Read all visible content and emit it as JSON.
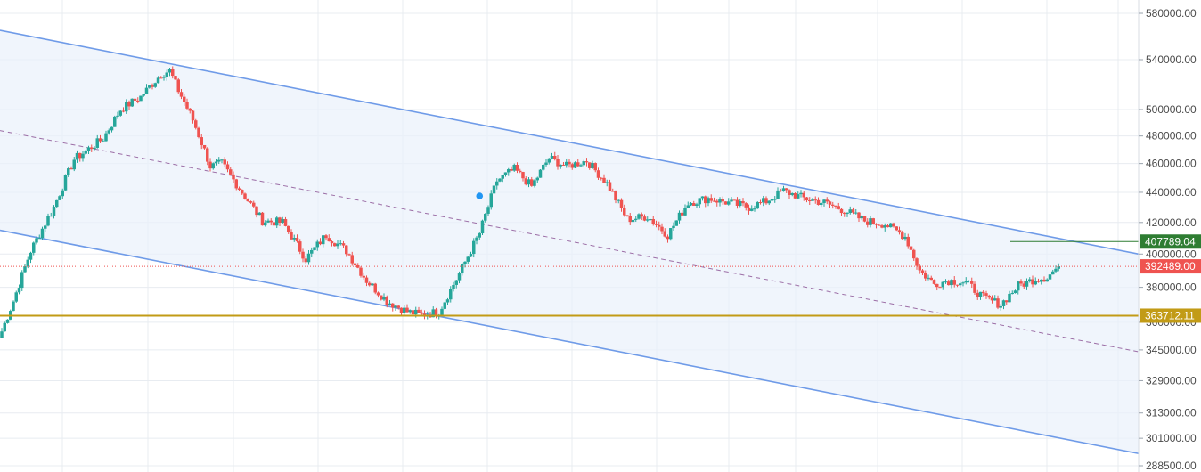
{
  "chart_data": {
    "type": "candlestick",
    "title": "",
    "xlabel": "",
    "ylabel": "",
    "y_scale": "log",
    "ylim": [
      288500,
      600000
    ],
    "grid": true,
    "y_ticks": [
      {
        "value": 580000,
        "label": "580000.00"
      },
      {
        "value": 540000,
        "label": "540000.00"
      },
      {
        "value": 500000,
        "label": "500000.00"
      },
      {
        "value": 480000,
        "label": "480000.00"
      },
      {
        "value": 460000,
        "label": "460000.00"
      },
      {
        "value": 440000,
        "label": "440000.00"
      },
      {
        "value": 420000,
        "label": "420000.00"
      },
      {
        "value": 400000,
        "label": "400000.00"
      },
      {
        "value": 380000,
        "label": "380000.00"
      },
      {
        "value": 360000,
        "label": "360000.00"
      },
      {
        "value": 345000,
        "label": "345000.00"
      },
      {
        "value": 329000,
        "label": "329000.00"
      },
      {
        "value": 313000,
        "label": "313000.00"
      },
      {
        "value": 301000,
        "label": "301000.00"
      },
      {
        "value": 288500,
        "label": "288500.00"
      }
    ],
    "price_levels": [
      {
        "name": "resistance",
        "value": 407789.04,
        "label": "407789.04",
        "color": "#2e7d32"
      },
      {
        "name": "last-price",
        "value": 392489.0,
        "label": "392489.00",
        "color": "#ef5350"
      },
      {
        "name": "support",
        "value": 363712.11,
        "label": "363712.11",
        "color": "#c29b16"
      }
    ],
    "channel": {
      "upper": [
        565000,
        400000
      ],
      "middle": [
        484000,
        344000
      ],
      "lower": [
        415000,
        294000
      ],
      "line_color": "#6f9be8",
      "fill_color": "#eaf1fb",
      "mid_color": "#9c6ea6"
    },
    "marker": {
      "index": 165,
      "value": 437500,
      "color": "#2196f3"
    },
    "colors": {
      "up": "#26a69a",
      "down": "#ef5350",
      "grid": "#e8ecf1"
    },
    "waypoints": [
      [
        0,
        355000
      ],
      [
        4,
        372000
      ],
      [
        10,
        402000
      ],
      [
        18,
        430000
      ],
      [
        25,
        463000
      ],
      [
        35,
        478000
      ],
      [
        41,
        500000
      ],
      [
        48,
        510000
      ],
      [
        55,
        528000
      ],
      [
        58,
        531000
      ],
      [
        61,
        515000
      ],
      [
        66,
        492000
      ],
      [
        72,
        458000
      ],
      [
        76,
        460000
      ],
      [
        83,
        440000
      ],
      [
        90,
        421000
      ],
      [
        97,
        420000
      ],
      [
        105,
        397000
      ],
      [
        112,
        412000
      ],
      [
        119,
        402000
      ],
      [
        126,
        384000
      ],
      [
        133,
        372000
      ],
      [
        140,
        366000
      ],
      [
        145,
        364000
      ],
      [
        151,
        366000
      ],
      [
        158,
        388000
      ],
      [
        165,
        413000
      ],
      [
        171,
        448000
      ],
      [
        177,
        456000
      ],
      [
        183,
        444000
      ],
      [
        189,
        464000
      ],
      [
        195,
        458000
      ],
      [
        202,
        462000
      ],
      [
        209,
        446000
      ],
      [
        216,
        422000
      ],
      [
        223,
        424000
      ],
      [
        230,
        412000
      ],
      [
        237,
        433000
      ],
      [
        244,
        436000
      ],
      [
        251,
        433000
      ],
      [
        258,
        430000
      ],
      [
        264,
        434000
      ],
      [
        270,
        441000
      ],
      [
        277,
        436000
      ],
      [
        284,
        433000
      ],
      [
        291,
        428000
      ],
      [
        298,
        421000
      ],
      [
        305,
        419000
      ],
      [
        312,
        411000
      ],
      [
        317,
        390000
      ],
      [
        322,
        382000
      ],
      [
        327,
        384000
      ],
      [
        333,
        383000
      ],
      [
        339,
        374000
      ],
      [
        345,
        370000
      ],
      [
        351,
        381000
      ],
      [
        357,
        385000
      ],
      [
        361,
        386000
      ],
      [
        365,
        392489
      ]
    ],
    "candle_count": 366,
    "seed": 7
  }
}
